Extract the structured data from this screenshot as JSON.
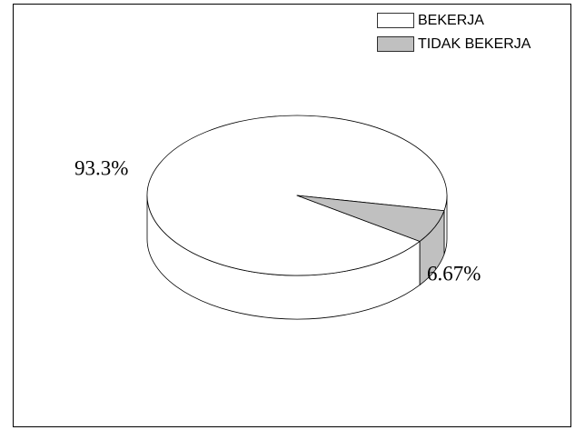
{
  "chart_data": {
    "type": "pie",
    "three_d": true,
    "categories": [
      "BEKERJA",
      "TIDAK BEKERJA"
    ],
    "values": [
      93.3,
      6.67
    ],
    "value_labels": [
      "93.3%",
      "6.67%"
    ],
    "colors": [
      "#ffffff",
      "#c0c0c0"
    ],
    "legend": "upper right"
  }
}
